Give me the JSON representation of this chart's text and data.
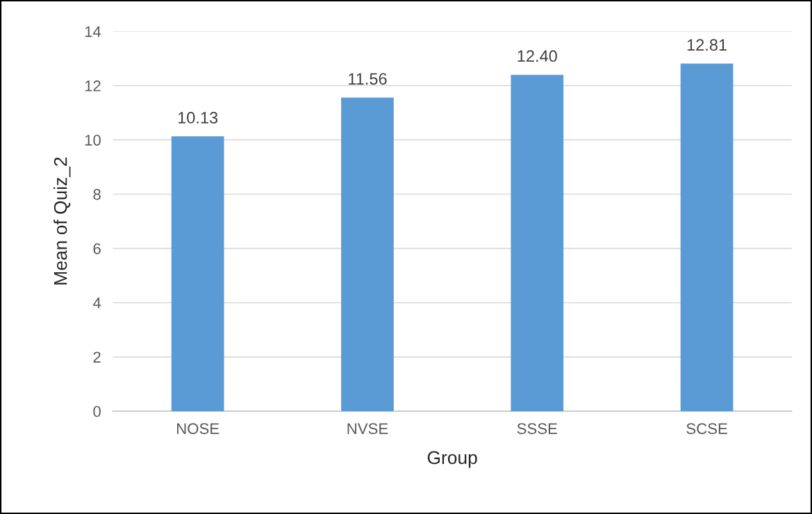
{
  "chart_data": {
    "type": "bar",
    "xlabel": "Group",
    "ylabel": "Mean of Quiz_2",
    "categories": [
      "NOSE",
      "NVSE",
      "SSSE",
      "SCSE"
    ],
    "values": [
      10.13,
      11.56,
      12.4,
      12.81
    ],
    "value_labels": [
      "10.13",
      "11.56",
      "12.40",
      "12.81"
    ],
    "color": "#5b9bd5",
    "ylim": [
      0,
      14
    ],
    "yticks": [
      0,
      2,
      4,
      6,
      8,
      10,
      12,
      14
    ],
    "grid": "y",
    "legend": false
  }
}
